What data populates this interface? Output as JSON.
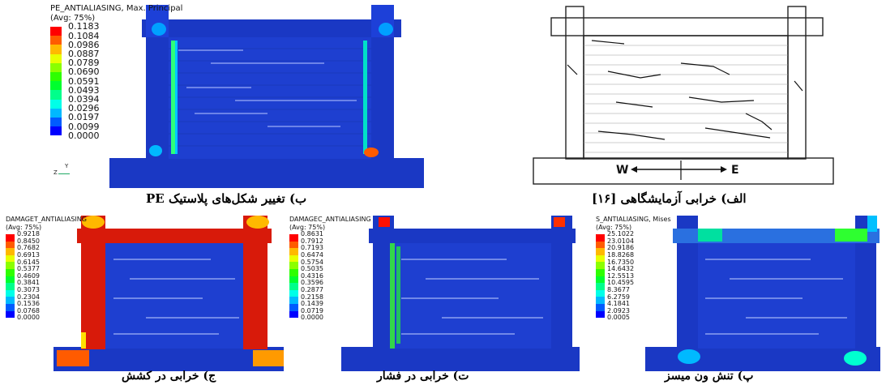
{
  "colors": {
    "background_blue": "#1433b8",
    "mesh_blue": "#1e3fd0",
    "crack_white": "#e8eeff",
    "scale": [
      "#0000ff",
      "#005bff",
      "#00b9ff",
      "#00ffe8",
      "#00ff8b",
      "#00ff2e",
      "#2eff00",
      "#8bff00",
      "#e8ff00",
      "#ffb900",
      "#ff5b00",
      "#ff0000"
    ]
  },
  "panels": {
    "pe": {
      "legend_title": "PE_ANTIALIASING, Max. Principal",
      "legend_avg": "(Avg: 75%)",
      "values": [
        "0.1183",
        "0.1084",
        "0.0986",
        "0.0887",
        "0.0789",
        "0.0690",
        "0.0591",
        "0.0493",
        "0.0394",
        "0.0296",
        "0.0197",
        "0.0099",
        "0.0000"
      ],
      "caption": "ب) تغییر شکل‌های پلاستیک PE"
    },
    "experiment": {
      "caption": "الف) خرابی آزمایشگاهی [۱۶]",
      "label_w": "W",
      "label_e": "E"
    },
    "damaget": {
      "legend_title": "DAMAGET_ANTIALIASING",
      "legend_avg": "(Avg: 75%)",
      "values": [
        "0.9218",
        "0.8450",
        "0.7682",
        "0.6913",
        "0.6145",
        "0.5377",
        "0.4609",
        "0.3841",
        "0.3073",
        "0.2304",
        "0.1536",
        "0.0768",
        "0.0000"
      ],
      "caption": "ج) خرابی در کشش"
    },
    "damagec": {
      "legend_title": "DAMAGEC_ANTIALIASING",
      "legend_avg": "(Avg: 75%)",
      "values": [
        "0.8631",
        "0.7912",
        "0.7193",
        "0.6474",
        "0.5754",
        "0.5035",
        "0.4316",
        "0.3596",
        "0.2877",
        "0.2158",
        "0.1439",
        "0.0719",
        "0.0000"
      ],
      "caption": "ت) خرابی در فشار"
    },
    "mises": {
      "legend_title": "S_ANTIALIASING, Mises",
      "legend_avg": "(Avg: 75%)",
      "values": [
        "25.1022",
        "23.0104",
        "20.9186",
        "18.8268",
        "16.7350",
        "14.6432",
        "12.5513",
        "10.4595",
        "8.3677",
        "6.2759",
        "4.1841",
        "2.0923",
        "0.0005"
      ],
      "caption": "پ) تنش ون میسز"
    }
  },
  "axis_triad": {
    "y": "Y",
    "z": "Z"
  }
}
